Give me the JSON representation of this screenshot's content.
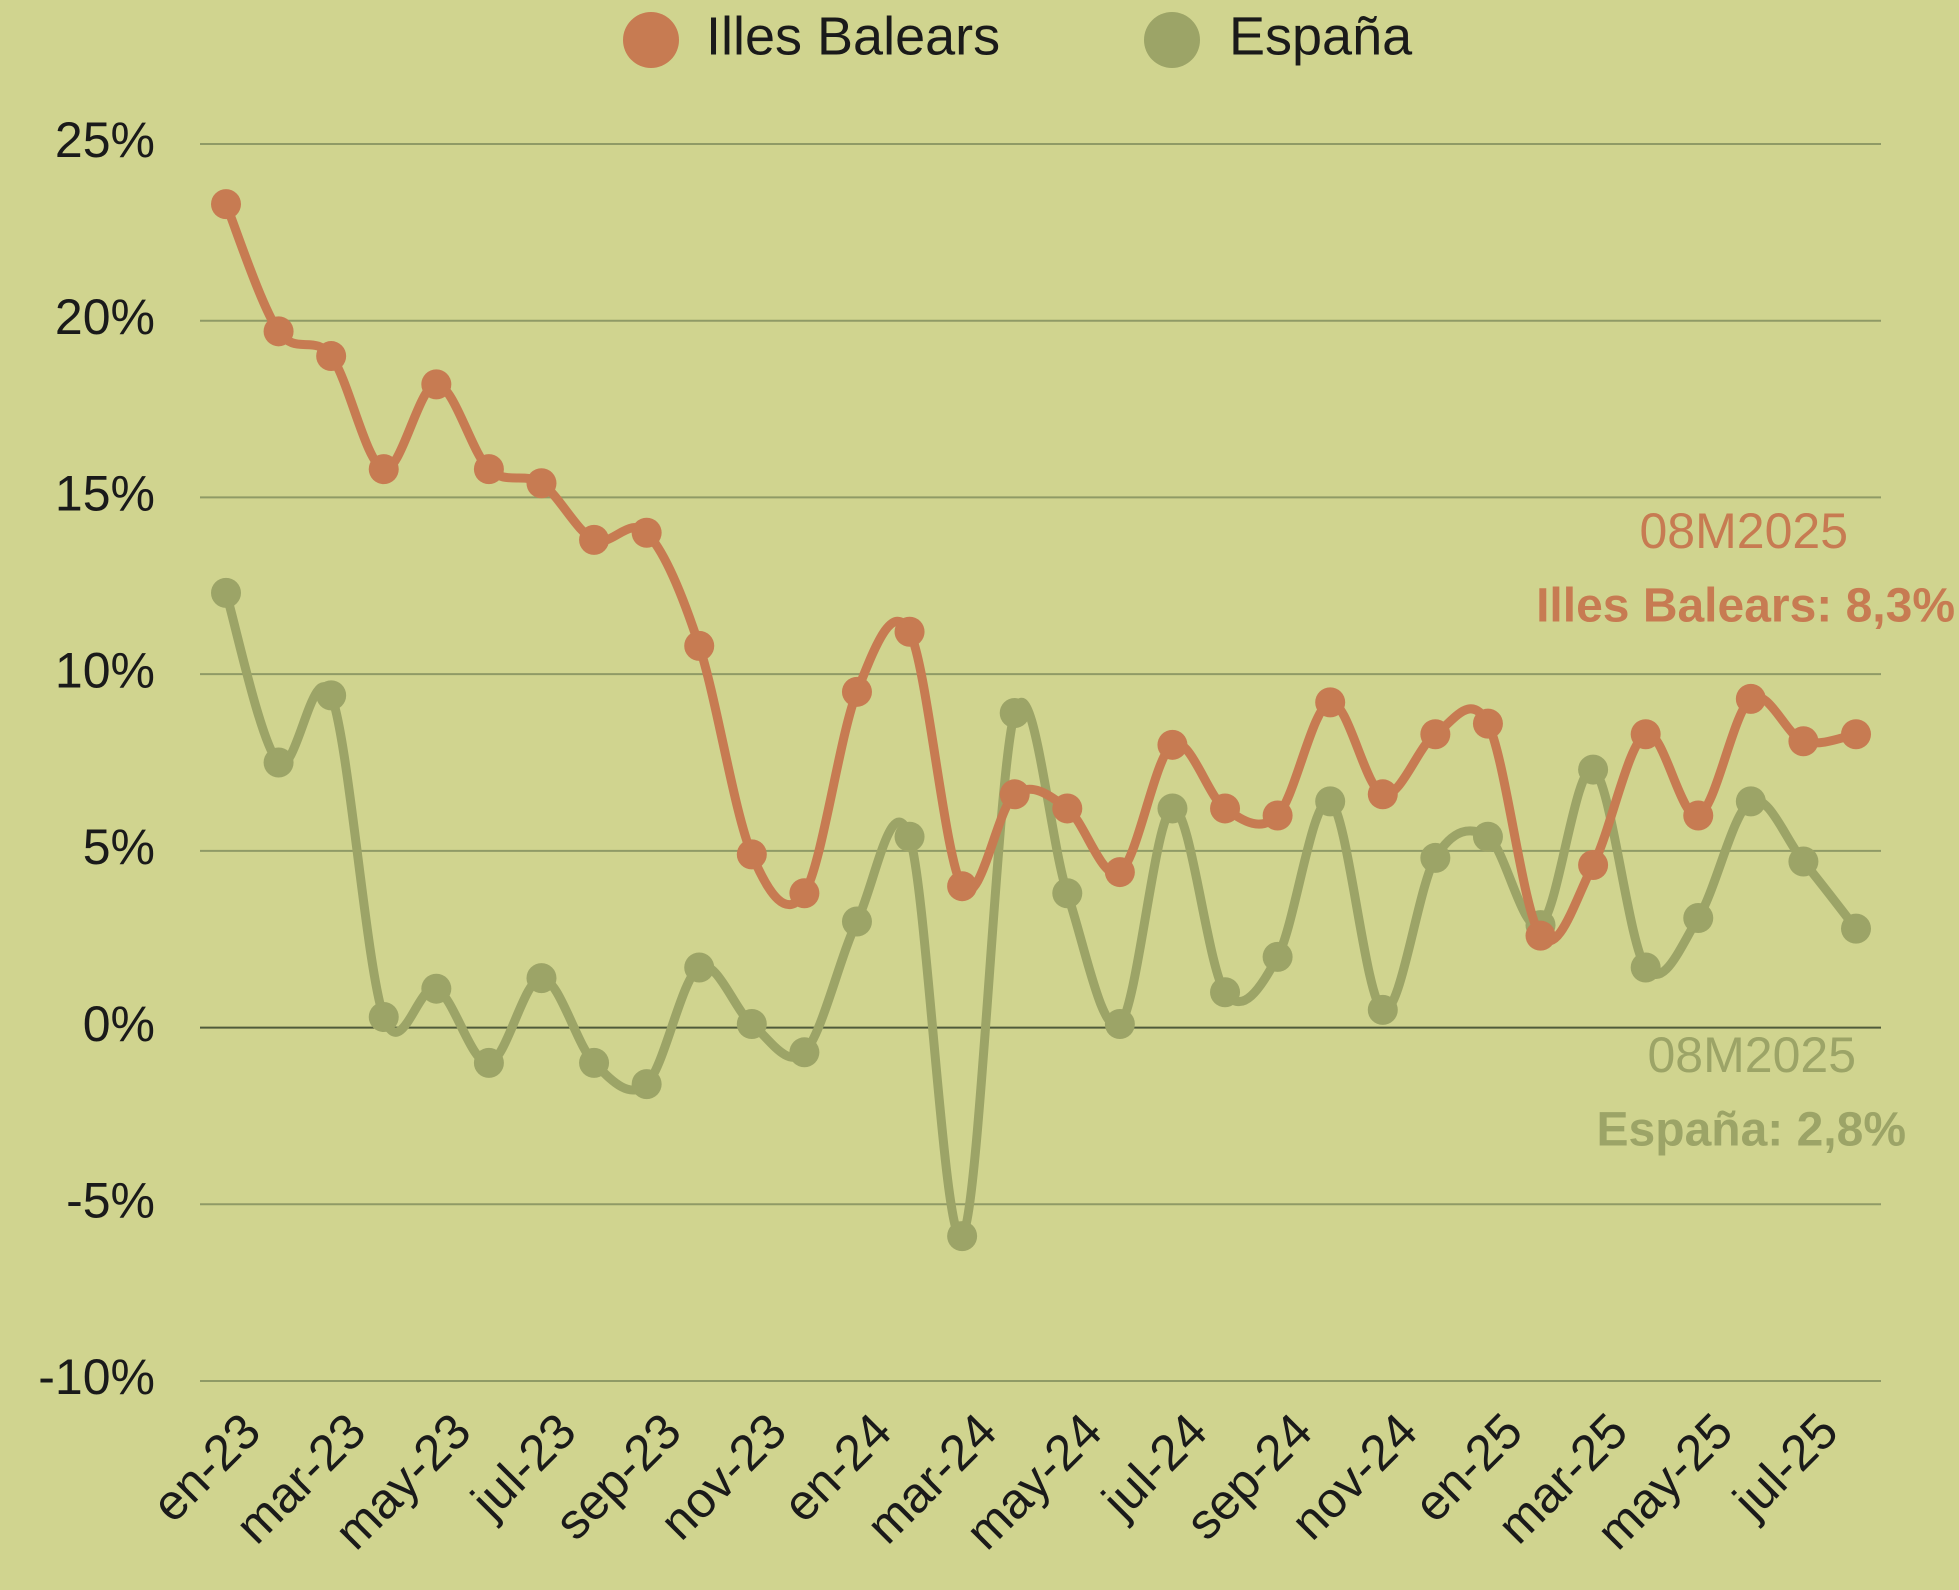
{
  "chart_data": {
    "type": "line",
    "categories": [
      "en-23",
      null,
      "mar-23",
      null,
      "may-23",
      null,
      "jul-23",
      null,
      "sep-23",
      null,
      "nov-23",
      null,
      "en-24",
      null,
      "mar-24",
      null,
      "may-24",
      null,
      "jul-24",
      null,
      "sep-24",
      null,
      "nov-24",
      null,
      "en-25",
      null,
      "mar-25",
      null,
      "may-25",
      null,
      "jul-25",
      null
    ],
    "series": [
      {
        "name": "Illes Balears",
        "color": "#c77b52",
        "values": [
          23.3,
          19.7,
          19.0,
          15.8,
          18.2,
          15.8,
          15.4,
          13.8,
          14.0,
          10.8,
          4.9,
          3.8,
          9.5,
          11.2,
          4.0,
          6.6,
          6.2,
          4.4,
          8.0,
          6.2,
          6.0,
          9.2,
          6.6,
          8.3,
          8.6,
          2.6,
          4.6,
          8.3,
          6.0,
          9.3,
          8.1,
          8.3
        ]
      },
      {
        "name": "España",
        "color": "#9ca467",
        "values": [
          12.3,
          7.5,
          9.4,
          0.3,
          1.1,
          -1.0,
          1.4,
          -1.0,
          -1.6,
          1.7,
          0.1,
          -0.7,
          3.0,
          5.4,
          -5.9,
          8.9,
          3.8,
          0.1,
          6.2,
          1.0,
          2.0,
          6.4,
          0.5,
          4.8,
          5.4,
          2.9,
          7.3,
          1.7,
          3.1,
          6.4,
          4.7,
          2.8
        ]
      }
    ],
    "ylim": [
      -10,
      25
    ],
    "yticks": [
      {
        "value": -10,
        "label": "-10%"
      },
      {
        "value": -5,
        "label": "-5%"
      },
      {
        "value": 0,
        "label": "0%"
      },
      {
        "value": 5,
        "label": "5%"
      },
      {
        "value": 10,
        "label": "10%"
      },
      {
        "value": 15,
        "label": "15%"
      },
      {
        "value": 20,
        "label": "20%"
      },
      {
        "value": 25,
        "label": "25%"
      }
    ],
    "grid": true,
    "legend": "top",
    "annotations": [
      {
        "period": "08M2025",
        "label": "Illes Balears: 8,3%"
      },
      {
        "period": "08M2025",
        "label": "España: 2,8%"
      }
    ]
  }
}
